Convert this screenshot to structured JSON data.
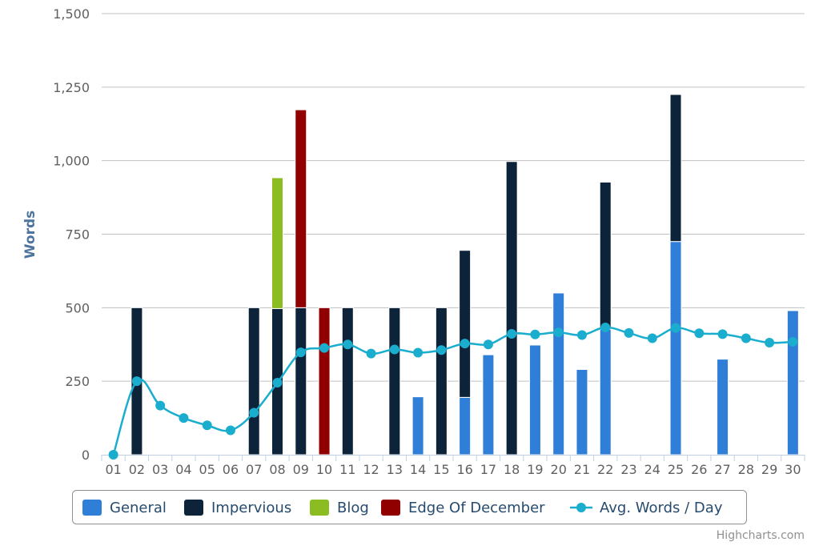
{
  "chart_data": {
    "type": "bar",
    "stacked": true,
    "categories": [
      "01",
      "02",
      "03",
      "04",
      "05",
      "06",
      "07",
      "08",
      "09",
      "10",
      "11",
      "12",
      "13",
      "14",
      "15",
      "16",
      "17",
      "18",
      "19",
      "20",
      "21",
      "22",
      "23",
      "24",
      "25",
      "26",
      "27",
      "28",
      "29",
      "30"
    ],
    "series": [
      {
        "name": "General",
        "type": "bar",
        "color": "#2f7ed8",
        "values": [
          0,
          0,
          0,
          0,
          0,
          0,
          0,
          0,
          0,
          0,
          0,
          0,
          0,
          197,
          0,
          195,
          340,
          0,
          373,
          550,
          290,
          427,
          0,
          0,
          725,
          0,
          325,
          0,
          0,
          490
        ]
      },
      {
        "name": "Impervious",
        "type": "bar",
        "color": "#0d233a",
        "values": [
          0,
          500,
          0,
          0,
          0,
          0,
          500,
          497,
          500,
          0,
          500,
          0,
          500,
          0,
          500,
          500,
          0,
          997,
          0,
          0,
          0,
          500,
          0,
          0,
          500,
          0,
          0,
          0,
          0,
          0
        ]
      },
      {
        "name": "Blog",
        "type": "bar",
        "color": "#8bbc21",
        "values": [
          0,
          0,
          0,
          0,
          0,
          0,
          0,
          445,
          0,
          0,
          0,
          0,
          0,
          0,
          0,
          0,
          0,
          0,
          0,
          0,
          0,
          0,
          0,
          0,
          0,
          0,
          0,
          0,
          0,
          0
        ]
      },
      {
        "name": "Edge Of December",
        "type": "bar",
        "color": "#910000",
        "values": [
          0,
          0,
          0,
          0,
          0,
          0,
          0,
          0,
          673,
          500,
          0,
          0,
          0,
          0,
          0,
          0,
          0,
          0,
          0,
          0,
          0,
          0,
          0,
          0,
          0,
          0,
          0,
          0,
          0,
          0
        ]
      },
      {
        "name": "Avg. Words / Day",
        "type": "line",
        "color": "#1aadce",
        "values": [
          0,
          250,
          167,
          125,
          100,
          83,
          143,
          245,
          348,
          363,
          375,
          344,
          358,
          347,
          356,
          378,
          375,
          411,
          409,
          416,
          407,
          433,
          414,
          396,
          431,
          413,
          410,
          396,
          381,
          384
        ]
      }
    ],
    "stack_order": [
      "General",
      "Impervious",
      "Blog",
      "Edge Of December"
    ],
    "xlabel": "",
    "ylabel": "Words",
    "ylim": [
      0,
      1500
    ],
    "yticks": [
      0,
      250,
      500,
      750,
      1000,
      1250,
      1500
    ],
    "ytick_labels": [
      "0",
      "250",
      "500",
      "750",
      "1,000",
      "1,250",
      "1,500"
    ],
    "grid": true,
    "legend_position": "bottom",
    "credits": "Highcharts.com"
  }
}
